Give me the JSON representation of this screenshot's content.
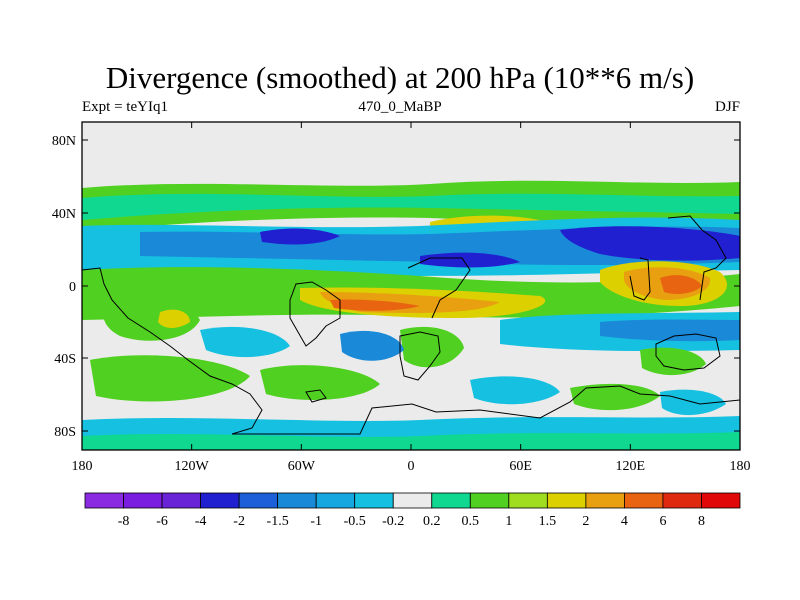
{
  "title": "Divergence (smoothed) at 200 hPa (10**6 m/s)",
  "subtitle": {
    "left": "Expt = teYIq1",
    "center": "470_0_MaBP",
    "right": "DJF"
  },
  "map": {
    "lon_ticks": [
      "180",
      "120W",
      "60W",
      "0",
      "60E",
      "120E",
      "180"
    ],
    "lat_ticks": [
      "80N",
      "40N",
      "0",
      "40S",
      "80S"
    ],
    "lon_range": [
      -180,
      180
    ],
    "lat_range": [
      -90,
      90
    ]
  },
  "colorbar": {
    "labels": [
      "-8",
      "-6",
      "-4",
      "-2",
      "-1.5",
      "-1",
      "-0.5",
      "-0.2",
      "0.2",
      "0.5",
      "1",
      "1.5",
      "2",
      "4",
      "6",
      "8"
    ],
    "colors": [
      "#8a2be2",
      "#7a1de0",
      "#6a24d8",
      "#2020d0",
      "#1c5fd8",
      "#1a8ad8",
      "#16a6e0",
      "#16c0e0",
      "#ebebeb",
      "#10d890",
      "#50d020",
      "#a0dc20",
      "#dcd000",
      "#e8a010",
      "#e86410",
      "#e02a10",
      "#e00808"
    ]
  },
  "palette": {
    "background": "#ebebeb",
    "neg_dark": "#2020d0",
    "neg_mid": "#1a8ad8",
    "neg_light": "#16c0e0",
    "pos_teal": "#10d890",
    "pos_green": "#50d020",
    "pos_lime": "#a0dc20",
    "pos_yellow": "#dcd000",
    "pos_orange": "#e8a010",
    "pos_red": "#e86410"
  }
}
